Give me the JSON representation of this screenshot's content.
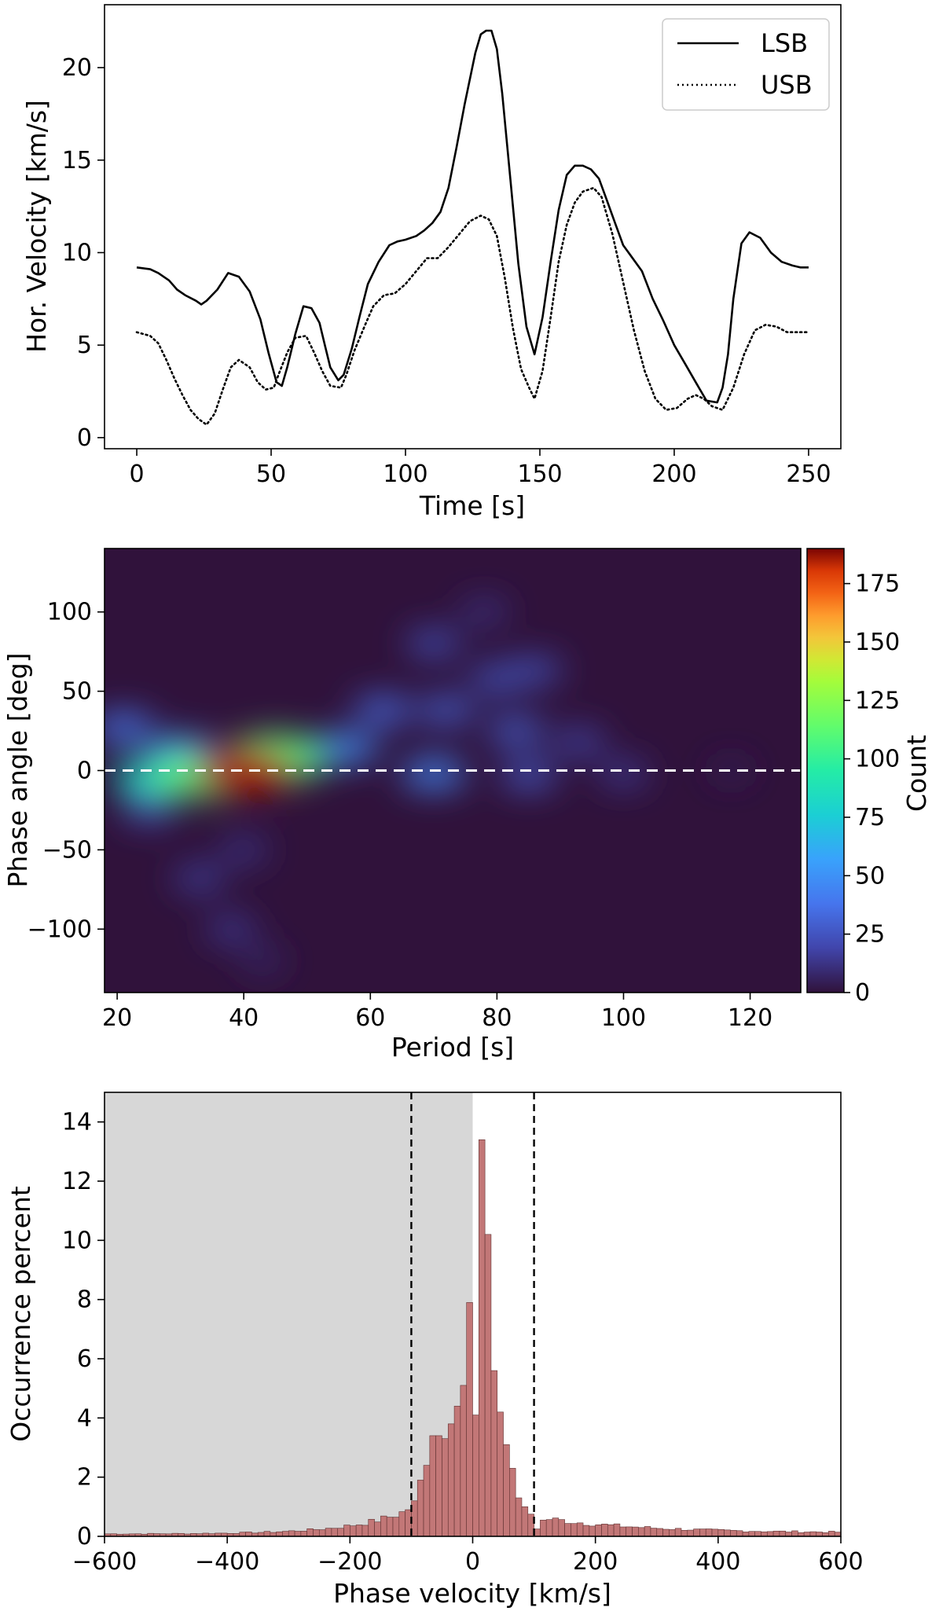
{
  "chart_data": [
    {
      "type": "line",
      "title": "",
      "xlabel": "Time [s]",
      "ylabel": "Hor. Velocity [km/s]",
      "xlim": [
        -12,
        262
      ],
      "ylim": [
        -0.6,
        23.4
      ],
      "xticks": [
        0,
        50,
        100,
        150,
        200,
        250
      ],
      "yticks": [
        0,
        5,
        10,
        15,
        20
      ],
      "legend_position": "top-right",
      "series": [
        {
          "name": "LSB",
          "style": "solid",
          "color": "#000000",
          "x": [
            0,
            5,
            8,
            12,
            15,
            18,
            22,
            24,
            26,
            30,
            34,
            38,
            42,
            46,
            49,
            52,
            54,
            56,
            59,
            62,
            65,
            68,
            70,
            72,
            75,
            77,
            80,
            83,
            86,
            90,
            94,
            97,
            100,
            104,
            107,
            110,
            113,
            116,
            119,
            122,
            126,
            128,
            130,
            132,
            134,
            136,
            139,
            142,
            145,
            148,
            151,
            154,
            157,
            160,
            163,
            166,
            169,
            172,
            175,
            178,
            181,
            184,
            188,
            192,
            196,
            200,
            204,
            208,
            212,
            216,
            218,
            220,
            222,
            225,
            228,
            232,
            236,
            240,
            244,
            247,
            250
          ],
          "values": [
            9.2,
            9.1,
            8.9,
            8.5,
            8.0,
            7.7,
            7.4,
            7.2,
            7.4,
            8.0,
            8.9,
            8.7,
            7.9,
            6.4,
            4.6,
            3.0,
            2.8,
            3.8,
            5.6,
            7.1,
            7.0,
            6.2,
            5.0,
            3.8,
            3.1,
            3.4,
            4.8,
            6.6,
            8.3,
            9.5,
            10.4,
            10.6,
            10.7,
            10.9,
            11.2,
            11.6,
            12.2,
            13.5,
            15.7,
            18.0,
            20.8,
            21.8,
            22.0,
            22.0,
            21.0,
            18.6,
            14.0,
            9.4,
            6.0,
            4.5,
            6.5,
            9.5,
            12.3,
            14.2,
            14.7,
            14.7,
            14.5,
            14.0,
            12.8,
            11.6,
            10.4,
            9.8,
            9.0,
            7.5,
            6.3,
            5.0,
            4.0,
            3.0,
            2.0,
            1.9,
            2.7,
            4.5,
            7.5,
            10.5,
            11.1,
            10.8,
            10.0,
            9.5,
            9.3,
            9.2,
            9.2
          ]
        },
        {
          "name": "USB",
          "style": "dotted",
          "color": "#000000",
          "x": [
            0,
            5,
            8,
            11,
            14,
            17,
            20,
            23,
            26,
            29,
            32,
            35,
            38,
            42,
            45,
            48,
            51,
            53,
            56,
            59,
            63,
            66,
            69,
            72,
            76,
            78,
            81,
            85,
            88,
            92,
            96,
            100,
            104,
            108,
            112,
            116,
            120,
            124,
            128,
            131,
            134,
            137,
            140,
            143,
            146,
            148,
            151,
            154,
            157,
            160,
            163,
            166,
            170,
            173,
            177,
            181,
            185,
            189,
            193,
            197,
            201,
            205,
            208,
            211,
            214,
            218,
            222,
            226,
            230,
            234,
            238,
            242,
            246,
            250
          ],
          "values": [
            5.7,
            5.5,
            5.1,
            4.2,
            3.2,
            2.3,
            1.5,
            1.0,
            0.7,
            1.3,
            2.6,
            3.8,
            4.2,
            3.8,
            3.0,
            2.6,
            2.7,
            3.5,
            4.6,
            5.4,
            5.5,
            4.6,
            3.6,
            2.8,
            2.7,
            3.4,
            4.7,
            6.1,
            7.1,
            7.7,
            7.8,
            8.3,
            9.0,
            9.7,
            9.7,
            10.3,
            11.0,
            11.7,
            12.0,
            11.8,
            10.9,
            8.6,
            5.9,
            3.7,
            2.7,
            2.1,
            3.6,
            6.5,
            9.5,
            11.5,
            12.7,
            13.3,
            13.5,
            13.0,
            11.0,
            8.4,
            5.8,
            3.6,
            2.1,
            1.5,
            1.6,
            2.1,
            2.3,
            2.1,
            1.7,
            1.5,
            2.7,
            4.5,
            5.8,
            6.1,
            6.0,
            5.7,
            5.7,
            5.7
          ]
        }
      ]
    },
    {
      "type": "heatmap",
      "title": "",
      "xlabel": "Period [s]",
      "ylabel": "Phase angle [deg]",
      "xlim": [
        18,
        128
      ],
      "ylim": [
        -140,
        140
      ],
      "xticks": [
        20,
        40,
        60,
        80,
        100,
        120
      ],
      "yticks": [
        -100,
        -50,
        0,
        50,
        100
      ],
      "reference_line": {
        "y": 0,
        "style": "dashed",
        "color": "#ffffff"
      },
      "colorbar": {
        "label": "Count",
        "range": [
          0,
          190
        ],
        "ticks": [
          0,
          25,
          50,
          75,
          100,
          125,
          150,
          175
        ],
        "colormap": "turbo"
      },
      "blobs": [
        {
          "x": 40,
          "y": 0,
          "count": 185
        },
        {
          "x": 33,
          "y": -2,
          "count": 110
        },
        {
          "x": 45,
          "y": 8,
          "count": 110
        },
        {
          "x": 26,
          "y": -5,
          "count": 80
        },
        {
          "x": 30,
          "y": 12,
          "count": 50
        },
        {
          "x": 21,
          "y": 27,
          "count": 40
        },
        {
          "x": 56,
          "y": 14,
          "count": 48
        },
        {
          "x": 70,
          "y": -2,
          "count": 45
        },
        {
          "x": 85,
          "y": -3,
          "count": 30
        },
        {
          "x": 100,
          "y": -2,
          "count": 18
        },
        {
          "x": 117,
          "y": 0,
          "count": 6
        },
        {
          "x": 62,
          "y": 38,
          "count": 35
        },
        {
          "x": 72,
          "y": 38,
          "count": 32
        },
        {
          "x": 83,
          "y": 25,
          "count": 32
        },
        {
          "x": 93,
          "y": 18,
          "count": 22
        },
        {
          "x": 80,
          "y": 58,
          "count": 28
        },
        {
          "x": 86,
          "y": 63,
          "count": 26
        },
        {
          "x": 70,
          "y": 80,
          "count": 26
        },
        {
          "x": 78,
          "y": 100,
          "count": 15
        },
        {
          "x": 25,
          "y": -25,
          "count": 25
        },
        {
          "x": 33,
          "y": -68,
          "count": 20
        },
        {
          "x": 38,
          "y": -100,
          "count": 18
        },
        {
          "x": 40,
          "y": -50,
          "count": 16
        },
        {
          "x": 43,
          "y": -120,
          "count": 10
        }
      ]
    },
    {
      "type": "bar",
      "title": "",
      "xlabel": "Phase velocity [km/s]",
      "ylabel": "Occurrence percent",
      "xlim": [
        -600,
        600
      ],
      "ylim": [
        0,
        15
      ],
      "xticks": [
        -600,
        -400,
        -200,
        0,
        200,
        400,
        600
      ],
      "xtick_labels": [
        "−600",
        "−400",
        "−200",
        "0",
        "200",
        "400",
        "600"
      ],
      "yticks": [
        0,
        2,
        4,
        6,
        8,
        10,
        12,
        14
      ],
      "shaded_region": {
        "x": [
          -600,
          0
        ],
        "color": "#d7d7d7"
      },
      "reference_lines": [
        {
          "x": -100,
          "style": "dashed"
        },
        {
          "x": 100,
          "style": "dashed"
        }
      ],
      "bar_color": "#c27777",
      "bin_width": 10,
      "bins": [
        {
          "center": -5,
          "value": 7.9
        },
        {
          "center": 5,
          "value": 4.1
        },
        {
          "center": 15,
          "value": 13.4
        },
        {
          "center": 25,
          "value": 10.2
        },
        {
          "center": 35,
          "value": 5.6
        },
        {
          "center": 45,
          "value": 4.2
        },
        {
          "center": 55,
          "value": 3.1
        },
        {
          "center": 65,
          "value": 2.3
        },
        {
          "center": 75,
          "value": 1.3
        },
        {
          "center": 85,
          "value": 1.0
        },
        {
          "center": 95,
          "value": 0.75
        },
        {
          "center": 105,
          "value": 0.25
        },
        {
          "center": 115,
          "value": 0.55
        },
        {
          "center": -15,
          "value": 5.1
        },
        {
          "center": -25,
          "value": 4.4
        },
        {
          "center": -35,
          "value": 3.8
        },
        {
          "center": -45,
          "value": 3.3
        },
        {
          "center": -55,
          "value": 3.4
        },
        {
          "center": -65,
          "value": 3.4
        },
        {
          "center": -75,
          "value": 2.4
        },
        {
          "center": -85,
          "value": 1.9
        },
        {
          "center": -95,
          "value": 1.2
        },
        {
          "center": -105,
          "value": 0.9
        }
      ]
    }
  ]
}
